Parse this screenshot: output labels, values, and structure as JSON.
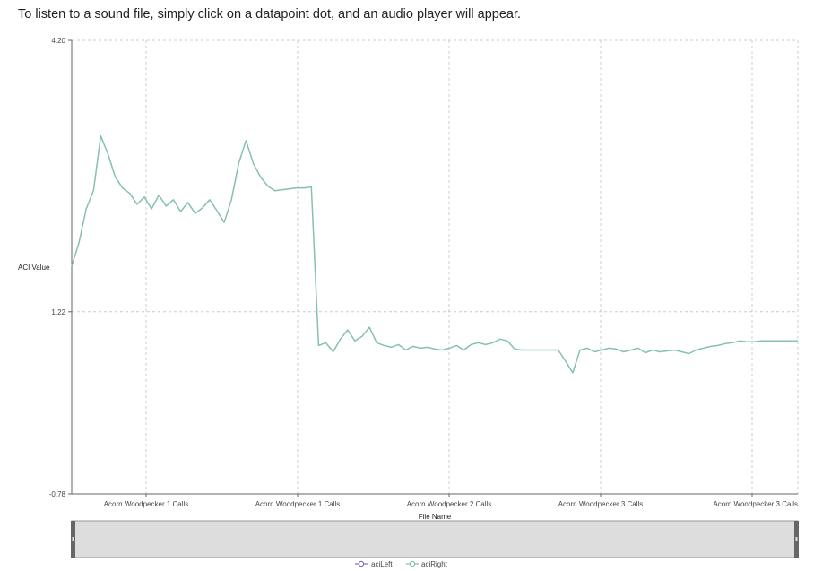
{
  "page": {
    "instruction": "To listen to a sound file, simply click on a datapoint dot, and an audio player will appear."
  },
  "colors": {
    "aciLeft": "#7b6fc4",
    "aciRight": "#85c1ad",
    "grid": "#cccccc",
    "brush_fill": "#dddddd",
    "brush_handle": "#666666"
  },
  "chart_data": {
    "type": "line",
    "xlabel": "File Name",
    "ylabel": "ACI Value",
    "ylim": [
      -0.78,
      4.2
    ],
    "yticks": [
      "4.20",
      "1.22",
      "-0.78"
    ],
    "xtick_labels": [
      "Acorn Woodpecker 1 Calls",
      "Acorn Woodpecker 1 Calls",
      "Acorn Woodpecker 2 Calls",
      "Acorn Woodpecker 3 Calls",
      "Acorn Woodpecker 3 Calls"
    ],
    "grid": true,
    "legend_position": "bottom-center",
    "series": [
      {
        "name": "aciLeft",
        "values": []
      },
      {
        "name": "aciRight",
        "x": [
          0,
          1,
          2,
          3,
          4,
          5,
          6,
          7,
          8,
          9,
          10,
          11,
          12,
          13,
          14,
          15,
          16,
          17,
          18,
          19,
          20,
          21,
          22,
          23,
          24,
          25,
          26,
          27,
          28,
          29,
          30,
          31,
          32,
          33,
          34,
          35,
          36,
          37,
          38,
          39,
          40,
          41,
          42,
          43,
          44,
          45,
          46,
          47,
          48,
          49,
          50,
          51,
          52,
          53,
          54,
          55,
          56,
          57,
          58,
          59,
          60,
          61,
          62,
          63,
          64,
          65,
          66,
          67,
          68,
          69,
          70,
          71,
          72,
          73,
          74,
          75,
          76,
          77,
          78,
          79,
          80,
          81,
          82,
          83,
          84,
          85,
          86,
          87,
          88,
          89,
          90,
          91,
          92,
          93,
          94,
          95,
          96,
          97,
          98,
          99,
          100
        ],
        "values": [
          1.72,
          1.98,
          2.35,
          2.55,
          3.15,
          2.95,
          2.7,
          2.58,
          2.52,
          2.4,
          2.48,
          2.35,
          2.5,
          2.38,
          2.45,
          2.32,
          2.42,
          2.3,
          2.36,
          2.45,
          2.33,
          2.2,
          2.45,
          2.85,
          3.1,
          2.85,
          2.7,
          2.6,
          2.55,
          2.56,
          2.57,
          2.58,
          2.58,
          2.59,
          0.85,
          0.88,
          0.78,
          0.92,
          1.02,
          0.9,
          0.95,
          1.05,
          0.88,
          0.85,
          0.83,
          0.86,
          0.8,
          0.84,
          0.82,
          0.83,
          0.81,
          0.8,
          0.82,
          0.85,
          0.8,
          0.86,
          0.88,
          0.86,
          0.88,
          0.92,
          0.9,
          0.81,
          0.8,
          0.8,
          0.8,
          0.8,
          0.8,
          0.8,
          0.68,
          0.55,
          0.8,
          0.82,
          0.78,
          0.8,
          0.82,
          0.81,
          0.78,
          0.8,
          0.82,
          0.77,
          0.8,
          0.78,
          0.79,
          0.8,
          0.78,
          0.76,
          0.8,
          0.82,
          0.84,
          0.85,
          0.87,
          0.88,
          0.9,
          0.89,
          0.89,
          0.9,
          0.9,
          0.9,
          0.9,
          0.9,
          0.9
        ]
      }
    ]
  }
}
